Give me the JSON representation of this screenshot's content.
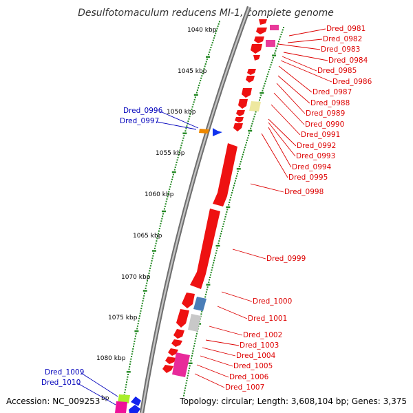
{
  "title": "Desulfotomaculum reducens MI-1, complete genome",
  "footer": {
    "accession": "Accession: NC_009253",
    "summary": "Topology: circular; Length: 3,608,104 bp; Genes: 3,375"
  },
  "colors": {
    "forward_label": "#0000bb",
    "reverse_label": "#dd0000",
    "backbone": "#999999",
    "tick": "#228822"
  },
  "ruler_labels": [
    {
      "text": "1040 kbp"
    },
    {
      "text": "1045 kbp"
    },
    {
      "text": "1050 kbp"
    },
    {
      "text": "1055 kbp"
    },
    {
      "text": "1060 kbp"
    },
    {
      "text": "1065 kbp"
    },
    {
      "text": "1070 kbp"
    },
    {
      "text": "1075 kbp"
    },
    {
      "text": "1080 kbp"
    },
    {
      "text": "bp"
    }
  ],
  "gene_labels": [
    {
      "text": "Dred_0981",
      "strand": "reverse"
    },
    {
      "text": "Dred_0982",
      "strand": "reverse"
    },
    {
      "text": "Dred_0983",
      "strand": "reverse"
    },
    {
      "text": "Dred_0984",
      "strand": "reverse"
    },
    {
      "text": "Dred_0985",
      "strand": "reverse"
    },
    {
      "text": "Dred_0986",
      "strand": "reverse"
    },
    {
      "text": "Dred_0987",
      "strand": "reverse"
    },
    {
      "text": "Dred_0988",
      "strand": "reverse"
    },
    {
      "text": "Dred_0989",
      "strand": "reverse"
    },
    {
      "text": "Dred_0990",
      "strand": "reverse"
    },
    {
      "text": "Dred_0991",
      "strand": "reverse"
    },
    {
      "text": "Dred_0992",
      "strand": "reverse"
    },
    {
      "text": "Dred_0993",
      "strand": "reverse"
    },
    {
      "text": "Dred_0994",
      "strand": "reverse"
    },
    {
      "text": "Dred_0995",
      "strand": "reverse"
    },
    {
      "text": "Dred_0996",
      "strand": "forward"
    },
    {
      "text": "Dred_0997",
      "strand": "forward"
    },
    {
      "text": "Dred_0998",
      "strand": "reverse"
    },
    {
      "text": "Dred_0999",
      "strand": "reverse"
    },
    {
      "text": "Dred_1000",
      "strand": "reverse"
    },
    {
      "text": "Dred_1001",
      "strand": "reverse"
    },
    {
      "text": "Dred_1002",
      "strand": "reverse"
    },
    {
      "text": "Dred_1003",
      "strand": "reverse"
    },
    {
      "text": "Dred_1004",
      "strand": "reverse"
    },
    {
      "text": "Dred_1005",
      "strand": "reverse"
    },
    {
      "text": "Dred_1006",
      "strand": "reverse"
    },
    {
      "text": "Dred_1007",
      "strand": "reverse"
    },
    {
      "text": "Dred_1009",
      "strand": "forward"
    },
    {
      "text": "Dred_1010",
      "strand": "forward"
    }
  ]
}
